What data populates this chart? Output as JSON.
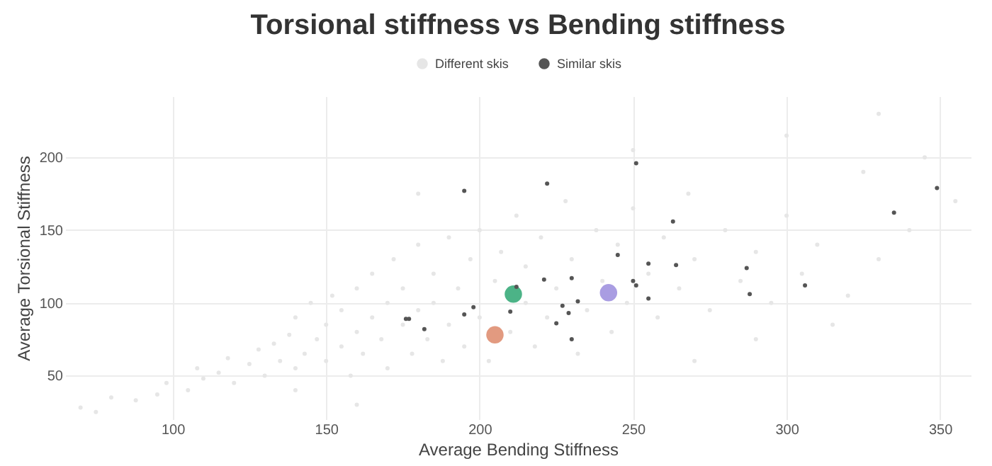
{
  "chart_data": {
    "type": "scatter",
    "title": "Torsional stiffness vs Bending stiffness",
    "xlabel": "Average Bending Stiffness",
    "ylabel": "Average Torsional Stiffness",
    "xlim": [
      65,
      360
    ],
    "xticks": [
      100,
      150,
      200,
      250,
      300,
      350
    ],
    "ylim": [
      20,
      242
    ],
    "yticks": [
      50,
      100,
      150,
      200
    ],
    "grid": true,
    "legend": "top",
    "marker": "circle",
    "series": [
      {
        "name": "Different skis",
        "color": "#e6e6e6",
        "x": [
          70,
          75,
          80,
          88,
          95,
          98,
          105,
          110,
          108,
          115,
          118,
          120,
          125,
          128,
          130,
          133,
          135,
          138,
          140,
          140,
          143,
          145,
          147,
          150,
          150,
          152,
          155,
          155,
          158,
          160,
          160,
          162,
          165,
          165,
          168,
          170,
          170,
          172,
          175,
          175,
          178,
          180,
          180,
          183,
          185,
          185,
          188,
          190,
          190,
          193,
          195,
          197,
          200,
          200,
          203,
          205,
          207,
          210,
          212,
          215,
          215,
          218,
          220,
          222,
          225,
          228,
          230,
          232,
          235,
          238,
          240,
          243,
          245,
          248,
          250,
          255,
          258,
          260,
          265,
          268,
          270,
          275,
          280,
          285,
          290,
          295,
          300,
          305,
          310,
          315,
          320,
          325,
          330,
          340,
          345,
          355,
          250,
          300,
          330,
          270,
          290,
          180,
          160,
          140
        ],
        "values": [
          28,
          25,
          35,
          33,
          37,
          45,
          40,
          48,
          55,
          52,
          62,
          45,
          58,
          68,
          50,
          72,
          60,
          78,
          55,
          90,
          65,
          100,
          75,
          60,
          85,
          105,
          70,
          95,
          50,
          80,
          110,
          65,
          90,
          120,
          75,
          100,
          55,
          130,
          85,
          110,
          65,
          95,
          140,
          75,
          120,
          100,
          60,
          85,
          145,
          110,
          70,
          130,
          90,
          150,
          60,
          115,
          135,
          80,
          160,
          100,
          125,
          70,
          145,
          90,
          110,
          170,
          130,
          65,
          95,
          150,
          115,
          80,
          140,
          100,
          165,
          120,
          90,
          145,
          110,
          175,
          130,
          95,
          150,
          115,
          135,
          100,
          160,
          120,
          140,
          85,
          105,
          190,
          130,
          150,
          200,
          170,
          205,
          215,
          230,
          60,
          75,
          175,
          30,
          40
        ]
      },
      {
        "name": "Similar skis",
        "color": "#555555",
        "x": [
          195,
          176,
          177,
          182,
          195,
          198,
          222,
          251,
          349,
          335,
          263,
          245,
          255,
          264,
          287,
          288,
          306,
          250,
          251,
          255,
          221,
          230,
          227,
          232,
          229,
          225,
          230,
          210,
          212
        ],
        "values": [
          177,
          89,
          89,
          82,
          92,
          97,
          182,
          196,
          179,
          162,
          156,
          133,
          127,
          126,
          124,
          106,
          112,
          115,
          112,
          103,
          116,
          117,
          98,
          101,
          93,
          86,
          75,
          94,
          111
        ]
      },
      {
        "color": "#e29a80",
        "x": [
          205
        ],
        "values": [
          78
        ]
      },
      {
        "color": "#4cb387",
        "x": [
          211
        ],
        "values": [
          106
        ]
      },
      {
        "color": "#a99de2",
        "x": [
          242
        ],
        "values": [
          107
        ]
      }
    ]
  }
}
